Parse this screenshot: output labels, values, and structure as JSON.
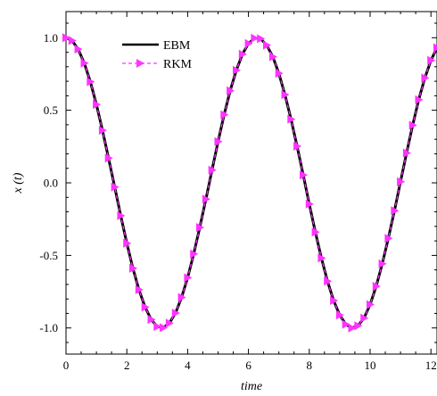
{
  "chart_data": {
    "type": "line",
    "title": "",
    "xlabel": "time",
    "ylabel": "x (t)",
    "xlim": [
      0,
      12.2
    ],
    "ylim": [
      -1.18,
      1.18
    ],
    "x_ticks": [
      0,
      2,
      4,
      6,
      8,
      10,
      12
    ],
    "x_tick_labels": [
      "0",
      "2",
      "4",
      "6",
      "8",
      "10",
      "12"
    ],
    "y_ticks": [
      1.0,
      0.5,
      0.0,
      -0.5,
      -1.0
    ],
    "y_tick_labels": [
      "1.0",
      "0.5",
      "0.0",
      "-0.5",
      "-1.0"
    ],
    "grid": false,
    "legend_position": "top-left",
    "series": [
      {
        "name": "EBM",
        "color": "#000000",
        "style": "solid",
        "x": [
          0,
          0.2,
          0.4,
          0.6,
          0.8,
          1.0,
          1.2,
          1.4,
          1.6,
          1.8,
          2.0,
          2.2,
          2.4,
          2.6,
          2.8,
          3.0,
          3.2,
          3.4,
          3.6,
          3.8,
          4.0,
          4.2,
          4.4,
          4.6,
          4.8,
          5.0,
          5.2,
          5.4,
          5.6,
          5.8,
          6.0,
          6.2,
          6.4,
          6.6,
          6.8,
          7.0,
          7.2,
          7.4,
          7.6,
          7.8,
          8.0,
          8.2,
          8.4,
          8.6,
          8.8,
          9.0,
          9.2,
          9.4,
          9.6,
          9.8,
          10.0,
          10.2,
          10.4,
          10.6,
          10.8,
          11.0,
          11.2,
          11.4,
          11.6,
          11.8,
          12.0,
          12.2
        ],
        "y": [
          1.0,
          0.98,
          0.921,
          0.825,
          0.697,
          0.54,
          0.362,
          0.17,
          -0.029,
          -0.227,
          -0.416,
          -0.589,
          -0.737,
          -0.857,
          -0.942,
          -0.99,
          -0.998,
          -0.967,
          -0.897,
          -0.79,
          -0.654,
          -0.49,
          -0.307,
          -0.112,
          0.087,
          0.284,
          0.469,
          0.635,
          0.776,
          0.886,
          0.96,
          0.997,
          0.993,
          0.949,
          0.869,
          0.754,
          0.608,
          0.439,
          0.252,
          0.054,
          -0.146,
          -0.339,
          -0.519,
          -0.678,
          -0.811,
          -0.911,
          -0.975,
          -1.0,
          -0.985,
          -0.932,
          -0.839,
          -0.713,
          -0.558,
          -0.383,
          -0.192,
          0.008,
          0.206,
          0.397,
          0.572,
          0.723,
          0.844,
          0.931
        ]
      },
      {
        "name": "RKM",
        "color": "#ff33ff",
        "style": "dashed",
        "marker": "triangle-right",
        "x": [
          0,
          0.2,
          0.4,
          0.6,
          0.8,
          1.0,
          1.2,
          1.4,
          1.6,
          1.8,
          2.0,
          2.2,
          2.4,
          2.6,
          2.8,
          3.0,
          3.2,
          3.4,
          3.6,
          3.8,
          4.0,
          4.2,
          4.4,
          4.6,
          4.8,
          5.0,
          5.2,
          5.4,
          5.6,
          5.8,
          6.0,
          6.2,
          6.4,
          6.6,
          6.8,
          7.0,
          7.2,
          7.4,
          7.6,
          7.8,
          8.0,
          8.2,
          8.4,
          8.6,
          8.8,
          9.0,
          9.2,
          9.4,
          9.6,
          9.8,
          10.0,
          10.2,
          10.4,
          10.6,
          10.8,
          11.0,
          11.2,
          11.4,
          11.6,
          11.8,
          12.0,
          12.2
        ],
        "y": [
          1.0,
          0.98,
          0.921,
          0.825,
          0.697,
          0.54,
          0.362,
          0.17,
          -0.029,
          -0.227,
          -0.416,
          -0.589,
          -0.737,
          -0.857,
          -0.942,
          -0.99,
          -0.998,
          -0.967,
          -0.897,
          -0.79,
          -0.654,
          -0.49,
          -0.307,
          -0.112,
          0.087,
          0.284,
          0.469,
          0.635,
          0.776,
          0.886,
          0.96,
          0.997,
          0.993,
          0.949,
          0.869,
          0.754,
          0.608,
          0.439,
          0.252,
          0.054,
          -0.146,
          -0.339,
          -0.519,
          -0.678,
          -0.811,
          -0.911,
          -0.975,
          -1.0,
          -0.985,
          -0.932,
          -0.839,
          -0.713,
          -0.558,
          -0.383,
          -0.192,
          0.008,
          0.206,
          0.397,
          0.572,
          0.723,
          0.844,
          0.931
        ]
      }
    ]
  }
}
